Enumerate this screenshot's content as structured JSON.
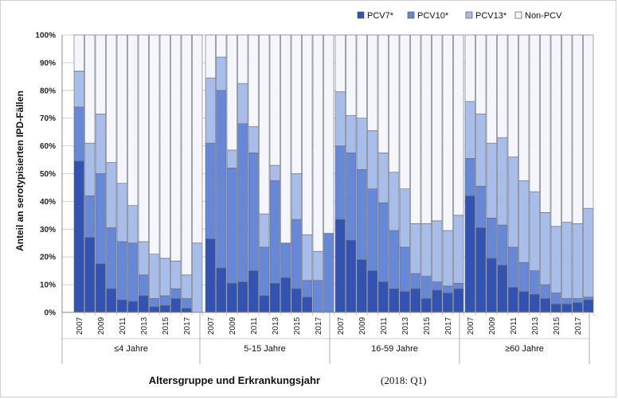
{
  "chart_data": {
    "type": "bar",
    "stacked": true,
    "percent": true,
    "ylabel": "Anteil an serotypisierten IPD-Fällen",
    "xlabel": "Altersgruppe und Erkrankungsjahr",
    "xlabel_note": "(2018: Q1)",
    "ylim": [
      0,
      100
    ],
    "yticks": [
      "0%",
      "10%",
      "20%",
      "30%",
      "40%",
      "50%",
      "60%",
      "70%",
      "80%",
      "90%",
      "100%"
    ],
    "legend_position": "top-right",
    "series": [
      {
        "name": "PCV7*",
        "color": "#3353b3"
      },
      {
        "name": "PCV10*",
        "color": "#6688d6"
      },
      {
        "name": "PCV13*",
        "color": "#a9bdea"
      },
      {
        "name": "Non-PCV",
        "color": "#f4f6fc"
      }
    ],
    "years": [
      "2007",
      "2008",
      "2009",
      "2010",
      "2011",
      "2012",
      "2013",
      "2014",
      "2015",
      "2016",
      "2017",
      "2018"
    ],
    "year_tick_labels": [
      "2007",
      "2009",
      "2011",
      "2013",
      "2015",
      "2017"
    ],
    "groups": [
      {
        "label": "≤4 Jahre",
        "cumulative_pcv7": [
          54.5,
          27,
          17.5,
          8.5,
          4.5,
          4,
          6,
          2,
          2.5,
          5,
          1.5,
          0
        ],
        "cumulative_pcv10": [
          74,
          42,
          50,
          30.5,
          25.5,
          25,
          13.5,
          5,
          6,
          8.5,
          5,
          0
        ],
        "cumulative_pcv13": [
          87,
          61,
          71.5,
          54,
          46.5,
          38.5,
          25.5,
          21,
          19.5,
          18.5,
          13.5,
          25
        ]
      },
      {
        "label": "5-15 Jahre",
        "cumulative_pcv7": [
          26.5,
          16,
          10.5,
          11,
          15,
          6,
          10.5,
          12.5,
          8.5,
          5.5,
          0,
          0
        ],
        "cumulative_pcv10": [
          61,
          80,
          52,
          68,
          57.5,
          23.5,
          47.5,
          25,
          33.5,
          11.5,
          11.5,
          28.5
        ],
        "cumulative_pcv13": [
          84.5,
          92,
          58.5,
          82.5,
          67,
          35.5,
          53,
          25,
          50,
          28,
          22,
          28.5
        ]
      },
      {
        "label": "16-59 Jahre",
        "cumulative_pcv7": [
          33.5,
          26,
          19,
          15,
          11,
          8.5,
          7.5,
          8.5,
          5,
          8,
          7,
          8.5
        ],
        "cumulative_pcv10": [
          60,
          57.5,
          51.5,
          44.5,
          39.5,
          29.5,
          23.5,
          14,
          13,
          11,
          9.5,
          10.5
        ],
        "cumulative_pcv13": [
          79.5,
          71,
          70,
          65.5,
          57.5,
          50.5,
          44.5,
          32,
          32,
          33,
          29.5,
          35
        ]
      },
      {
        "label": "≥60 Jahre",
        "cumulative_pcv7": [
          42,
          30.5,
          19.5,
          17,
          9,
          7.5,
          6.5,
          5,
          3,
          3,
          3.5,
          4.5
        ],
        "cumulative_pcv10": [
          55.5,
          45.5,
          34,
          31.5,
          23.5,
          18,
          15,
          10,
          7,
          5,
          5,
          5.5
        ],
        "cumulative_pcv13": [
          76,
          71.5,
          61,
          63,
          56,
          47.5,
          43.5,
          36,
          31,
          32.5,
          32,
          37.5
        ]
      }
    ]
  }
}
